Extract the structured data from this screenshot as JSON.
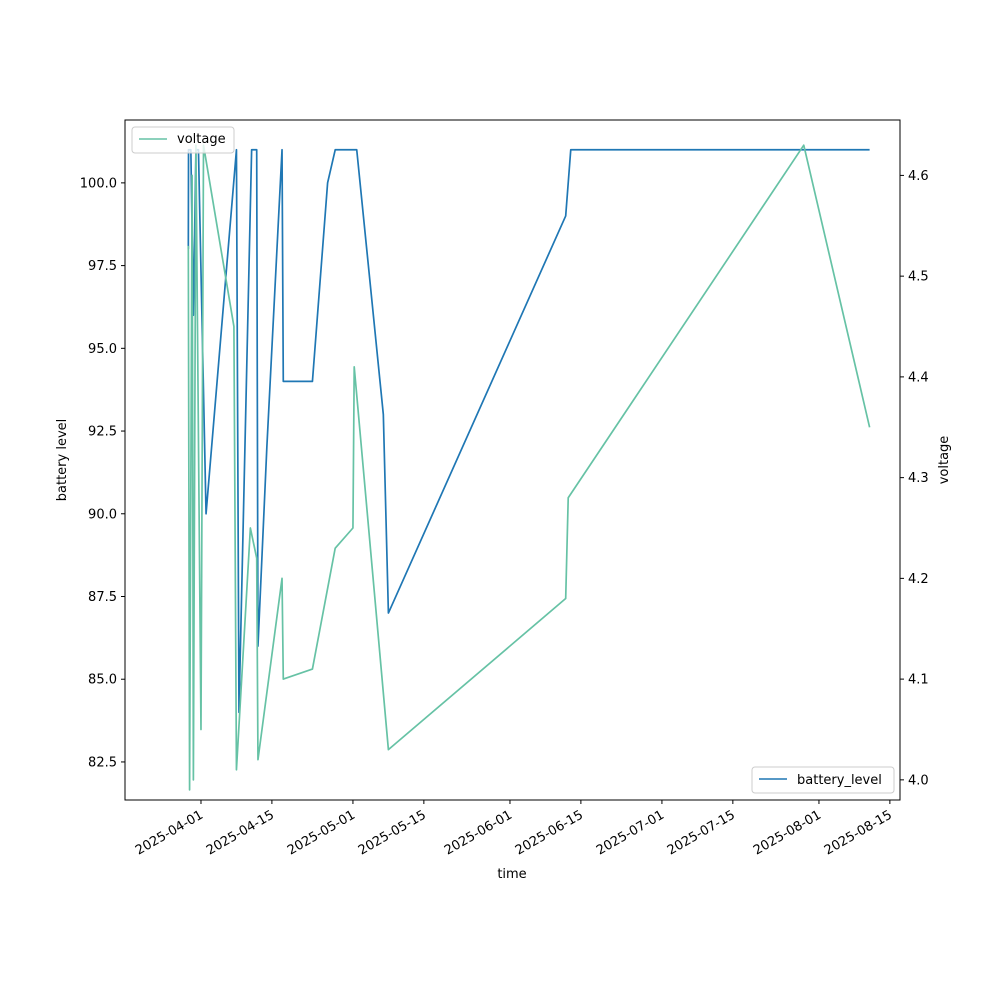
{
  "chart_data": {
    "type": "line",
    "xlabel": "time",
    "ylabel_left": "battery level",
    "ylabel_right": "voltage",
    "x_ticks": [
      "2025-04-01",
      "2025-04-15",
      "2025-05-01",
      "2025-05-15",
      "2025-06-01",
      "2025-06-15",
      "2025-07-01",
      "2025-07-15",
      "2025-08-01",
      "2025-08-15"
    ],
    "y_left_ticks": [
      82.5,
      85.0,
      87.5,
      90.0,
      92.5,
      95.0,
      97.5,
      100.0
    ],
    "y_left_tick_labels": [
      "82.5",
      "85.0",
      "87.5",
      "90.0",
      "92.5",
      "95.0",
      "97.5",
      "100.0"
    ],
    "y_right_ticks": [
      4.0,
      4.1,
      4.2,
      4.3,
      4.4,
      4.5,
      4.6
    ],
    "y_right_tick_labels": [
      "4.0",
      "4.1",
      "4.2",
      "4.3",
      "4.4",
      "4.5",
      "4.6"
    ],
    "x_range": [
      "2025-03-17",
      "2025-08-17"
    ],
    "y_left_range": [
      81.35,
      101.9
    ],
    "y_right_range": [
      3.98,
      4.655
    ],
    "series": [
      {
        "name": "battery_level",
        "axis": "left",
        "color": "#1f77b4",
        "points": [
          [
            "2025-03-29T12:00",
            98.0
          ],
          [
            "2025-03-29T13:00",
            101.0
          ],
          [
            "2025-03-30",
            101.0
          ],
          [
            "2025-03-30T12:00",
            96.0
          ],
          [
            "2025-03-31",
            101.0
          ],
          [
            "2025-03-31T12:00",
            101.0
          ],
          [
            "2025-04-02",
            90.0
          ],
          [
            "2025-04-08",
            101.0
          ],
          [
            "2025-04-08T12:00",
            84.0
          ],
          [
            "2025-04-11",
            101.0
          ],
          [
            "2025-04-12",
            101.0
          ],
          [
            "2025-04-12T06:00",
            86.0
          ],
          [
            "2025-04-14",
            92.0
          ],
          [
            "2025-04-17",
            101.0
          ],
          [
            "2025-04-17T06:00",
            94.0
          ],
          [
            "2025-04-23",
            94.0
          ],
          [
            "2025-04-25",
            98.0
          ],
          [
            "2025-04-26",
            100.0
          ],
          [
            "2025-04-27T12:00",
            101.0
          ],
          [
            "2025-05-01T18:00",
            101.0
          ],
          [
            "2025-05-07",
            93.0
          ],
          [
            "2025-05-08",
            87.0
          ],
          [
            "2025-06-12",
            99.0
          ],
          [
            "2025-06-13",
            101.0
          ],
          [
            "2025-08-11",
            101.0
          ]
        ]
      },
      {
        "name": "voltage",
        "axis": "right",
        "color": "#66c2a5",
        "points": [
          [
            "2025-03-29T12:00",
            4.53
          ],
          [
            "2025-03-29T18:00",
            3.99
          ],
          [
            "2025-03-30T06:00",
            4.6
          ],
          [
            "2025-03-30T12:00",
            4.0
          ],
          [
            "2025-03-31",
            4.63
          ],
          [
            "2025-04-01",
            4.05
          ],
          [
            "2025-04-01T12:00",
            4.63
          ],
          [
            "2025-04-07T12:00",
            4.45
          ],
          [
            "2025-04-08",
            4.01
          ],
          [
            "2025-04-10T18:00",
            4.25
          ],
          [
            "2025-04-12",
            4.22
          ],
          [
            "2025-04-12T06:00",
            4.02
          ],
          [
            "2025-04-17",
            4.2
          ],
          [
            "2025-04-17T06:00",
            4.1
          ],
          [
            "2025-04-23",
            4.11
          ],
          [
            "2025-04-26",
            4.19
          ],
          [
            "2025-04-27T12:00",
            4.23
          ],
          [
            "2025-05-01",
            4.25
          ],
          [
            "2025-05-01T06:00",
            4.41
          ],
          [
            "2025-05-08",
            4.03
          ],
          [
            "2025-06-12",
            4.18
          ],
          [
            "2025-06-12T12:00",
            4.28
          ],
          [
            "2025-07-29",
            4.63
          ],
          [
            "2025-08-11",
            4.35
          ]
        ]
      }
    ],
    "legends": [
      {
        "label": "voltage",
        "placement": "upper-left"
      },
      {
        "label": "battery_level",
        "placement": "lower-right"
      }
    ]
  }
}
